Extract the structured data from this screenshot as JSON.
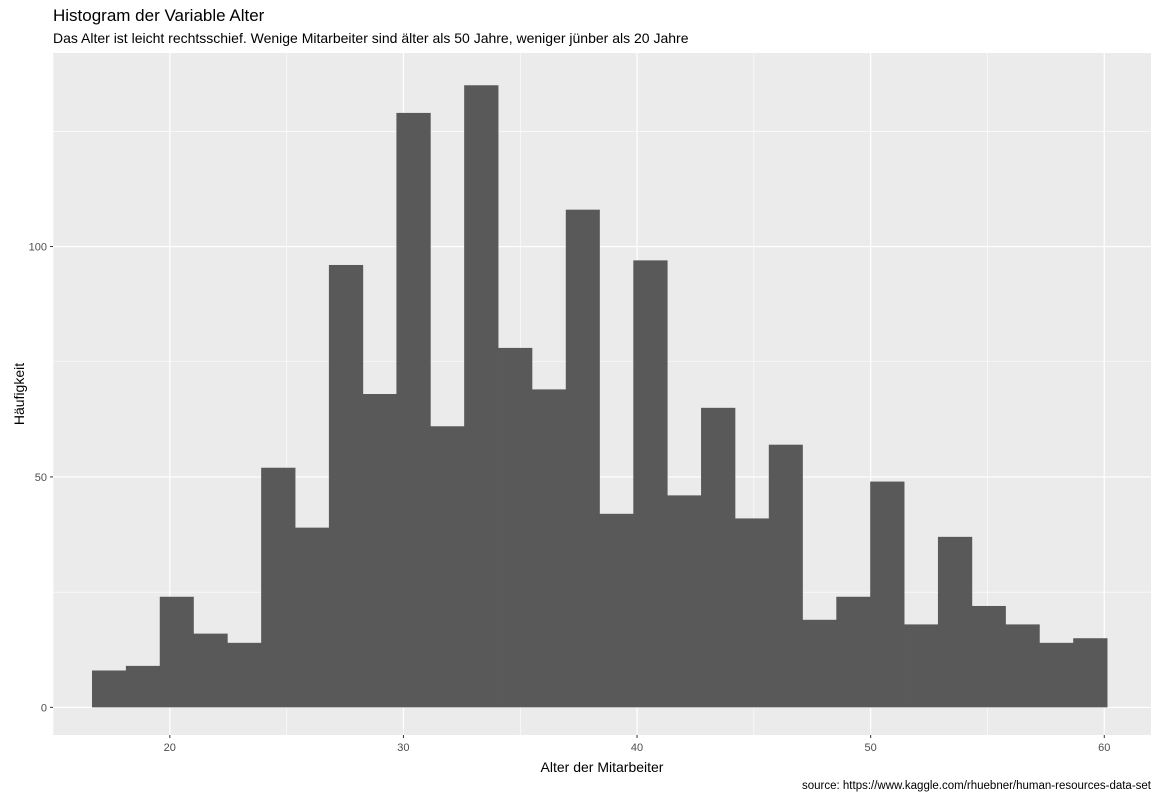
{
  "chart_data": {
    "type": "bar",
    "title": "Histogram der Variable Alter",
    "subtitle": "Das Alter ist leicht rechtsschief. Wenige Mitarbeiter sind älter als 50 Jahre, weniger jünber als 20 Jahre",
    "caption": "source: https://www.kaggle.com/rhuebner/human-resources-data-set",
    "xlabel": "Alter der Mitarbeiter",
    "ylabel": "Häufigkeit",
    "xlim": [
      15,
      62
    ],
    "ylim": [
      -6,
      142
    ],
    "x_ticks": [
      20,
      30,
      40,
      50,
      60
    ],
    "y_ticks": [
      0,
      50,
      100
    ],
    "bin_width": 1.4483,
    "bins": [
      {
        "xmin": 16.67,
        "xmax": 18.12,
        "count": 8
      },
      {
        "xmin": 18.12,
        "xmax": 19.57,
        "count": 9
      },
      {
        "xmin": 19.57,
        "xmax": 21.01,
        "count": 24
      },
      {
        "xmin": 21.01,
        "xmax": 22.46,
        "count": 16
      },
      {
        "xmin": 22.46,
        "xmax": 23.91,
        "count": 14
      },
      {
        "xmin": 23.91,
        "xmax": 25.36,
        "count": 52
      },
      {
        "xmin": 25.36,
        "xmax": 26.81,
        "count": 39
      },
      {
        "xmin": 26.81,
        "xmax": 28.26,
        "count": 96
      },
      {
        "xmin": 28.26,
        "xmax": 29.7,
        "count": 68
      },
      {
        "xmin": 29.7,
        "xmax": 31.15,
        "count": 129
      },
      {
        "xmin": 31.15,
        "xmax": 32.6,
        "count": 61
      },
      {
        "xmin": 32.6,
        "xmax": 34.05,
        "count": 135
      },
      {
        "xmin": 34.05,
        "xmax": 35.5,
        "count": 78
      },
      {
        "xmin": 35.5,
        "xmax": 36.95,
        "count": 69
      },
      {
        "xmin": 36.95,
        "xmax": 38.39,
        "count": 108
      },
      {
        "xmin": 38.39,
        "xmax": 39.84,
        "count": 42
      },
      {
        "xmin": 39.84,
        "xmax": 41.29,
        "count": 97
      },
      {
        "xmin": 41.29,
        "xmax": 42.74,
        "count": 46
      },
      {
        "xmin": 42.74,
        "xmax": 44.19,
        "count": 65
      },
      {
        "xmin": 44.19,
        "xmax": 45.64,
        "count": 41
      },
      {
        "xmin": 45.64,
        "xmax": 47.08,
        "count": 57
      },
      {
        "xmin": 47.08,
        "xmax": 48.53,
        "count": 19
      },
      {
        "xmin": 48.53,
        "xmax": 49.98,
        "count": 24
      },
      {
        "xmin": 49.98,
        "xmax": 51.43,
        "count": 49
      },
      {
        "xmin": 51.43,
        "xmax": 52.88,
        "count": 18
      },
      {
        "xmin": 52.88,
        "xmax": 54.33,
        "count": 37
      },
      {
        "xmin": 54.33,
        "xmax": 55.77,
        "count": 22
      },
      {
        "xmin": 55.77,
        "xmax": 57.22,
        "count": 18
      },
      {
        "xmin": 57.22,
        "xmax": 58.67,
        "count": 14
      },
      {
        "xmin": 58.67,
        "xmax": 60.12,
        "count": 15
      }
    ],
    "grid": true,
    "colors": {
      "panel_background": "#ebebeb",
      "grid_major": "#ffffff",
      "bar_fill": "#595959",
      "tick_label": "#4d4d4d"
    }
  }
}
